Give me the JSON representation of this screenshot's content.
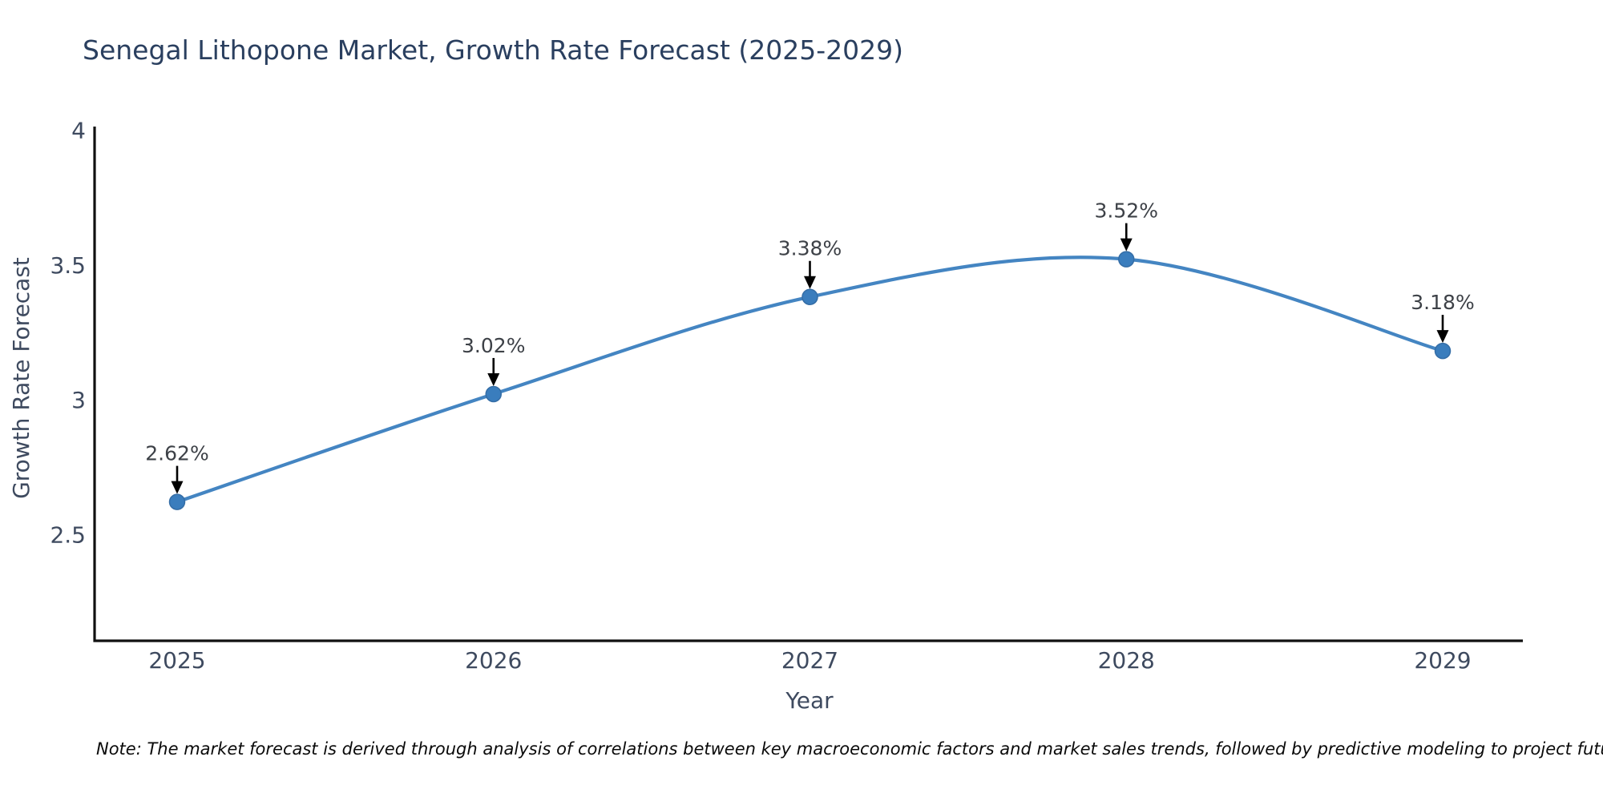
{
  "title": "Senegal Lithopone Market, Growth Rate Forecast (2025-2029)",
  "note": "Note: The market forecast is derived through analysis of correlations between key macroeconomic factors and market sales trends, followed by predictive modeling to project future sales",
  "chart_data": {
    "type": "line",
    "title": "Senegal Lithopone Market, Growth Rate Forecast (2025-2029)",
    "xlabel": "Year",
    "ylabel": "Growth Rate Forecast",
    "categories": [
      "2025",
      "2026",
      "2027",
      "2028",
      "2029"
    ],
    "values": [
      2.62,
      3.02,
      3.38,
      3.52,
      3.18
    ],
    "point_labels": [
      "2.62%",
      "3.02%",
      "3.38%",
      "3.52%",
      "3.18%"
    ],
    "yticks": [
      4,
      3.5,
      3,
      2.5
    ],
    "ylim": [
      2.105,
      4.02
    ],
    "grid": false,
    "legend": false,
    "smooth": true,
    "annotations_have_arrows": true
  },
  "colors": {
    "line": "#4485c2",
    "marker": "#3a7dbd",
    "marker_edge": "#346da6",
    "axis": "#111111",
    "arrow": "#000000",
    "title_text": "#2a3f5f",
    "axis_text": "#3e4a5f",
    "annotation_text": "#3d4147",
    "note_text": "#0a0a0a"
  }
}
